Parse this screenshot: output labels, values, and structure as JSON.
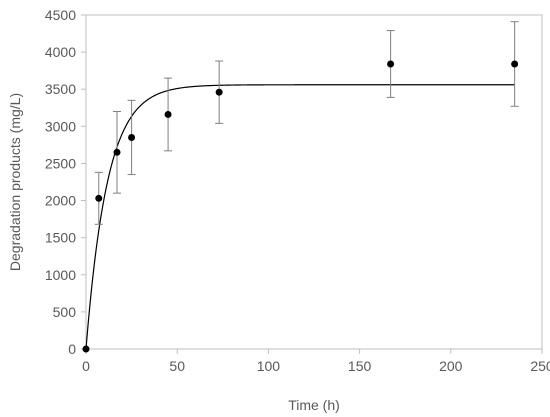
{
  "chart_data": {
    "type": "scatter",
    "title": "",
    "xlabel": "Time (h)",
    "ylabel": "Degradation  products (mg/L)",
    "xlim": [
      0,
      250
    ],
    "ylim": [
      0,
      4500
    ],
    "x_ticks": [
      0,
      50,
      100,
      150,
      200,
      250
    ],
    "y_ticks": [
      0,
      500,
      1000,
      1500,
      2000,
      2500,
      3000,
      3500,
      4000,
      4500
    ],
    "grid": false,
    "legend": "none",
    "series": [
      {
        "kind": "points_with_error_bars",
        "x": [
          0,
          7,
          17,
          25,
          45,
          73,
          167,
          235
        ],
        "y": [
          0,
          2030,
          2650,
          2850,
          3160,
          3460,
          3840,
          3840
        ],
        "err": [
          0,
          350,
          550,
          500,
          490,
          420,
          450,
          570
        ],
        "marker_color": "#000000",
        "errorbar_color": "#7f7f7f"
      },
      {
        "kind": "fitted_curve",
        "model": "exponential_saturation",
        "asymptote": 3560,
        "rate": 0.085,
        "color": "#000000"
      }
    ]
  }
}
